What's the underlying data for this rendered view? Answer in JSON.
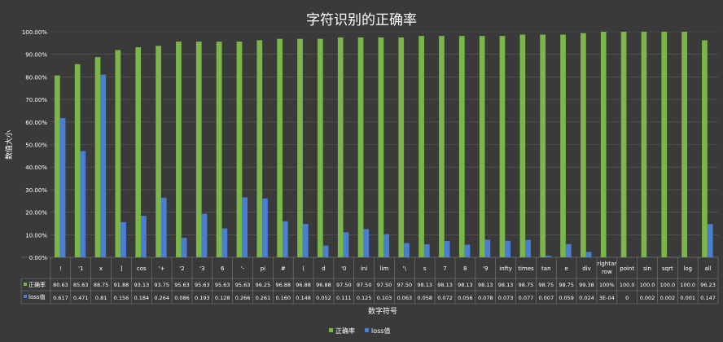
{
  "chart_data": {
    "type": "bar",
    "title": "字符识别的正确率",
    "xlabel": "数字符号",
    "ylabel": "数值大小",
    "ylim": [
      0,
      100
    ],
    "yticks": [
      "0.00%",
      "10.00%",
      "20.00%",
      "30.00%",
      "40.00%",
      "50.00%",
      "60.00%",
      "70.00%",
      "80.00%",
      "90.00%",
      "100.00%"
    ],
    "grid": true,
    "legend_position": "bottom",
    "colors": {
      "accuracy": "#7ab648",
      "loss": "#4a7ed0",
      "background": "#3a3a3a",
      "text": "#ffffff",
      "grid": "#5c5c5c"
    },
    "categories": [
      "!",
      "'1",
      "x",
      "]",
      "cos",
      "'+",
      "'2",
      "'3",
      "6",
      "'-",
      "pi",
      "#",
      "(",
      "d",
      "'0",
      "ini",
      "lim",
      "'\\",
      "s",
      "7",
      "8",
      "'9",
      "infty",
      "times",
      "tan",
      "e",
      "div",
      "rightarrow",
      "point",
      "sin",
      "sqrt",
      "log",
      "all"
    ],
    "category_display": [
      "!",
      "'1",
      "x",
      "]",
      "cos",
      "'+",
      "'2",
      "'3",
      "6",
      "'-",
      "pi",
      "#",
      "(",
      "d",
      "'0",
      "ini",
      "lim",
      "'\\",
      "s",
      "7",
      "8",
      "'9",
      "infty",
      "times",
      "tan",
      "e",
      "div",
      "rightar row",
      "point",
      "sin",
      "sqrt",
      "log",
      "all"
    ],
    "series": [
      {
        "name": "正确率",
        "values": [
          80.63,
          85.63,
          88.75,
          91.88,
          93.13,
          93.75,
          95.63,
          95.63,
          95.63,
          95.63,
          96.25,
          96.88,
          96.88,
          96.88,
          97.5,
          97.5,
          97.5,
          97.5,
          98.13,
          98.13,
          98.13,
          98.13,
          98.13,
          98.75,
          98.75,
          98.75,
          99.38,
          100,
          100,
          100,
          100,
          100,
          96.23
        ],
        "labels": [
          "80.63",
          "85.63",
          "88.75",
          "91.88",
          "93.13",
          "93.75",
          "95.63",
          "95.63",
          "95.63",
          "95.63",
          "96.25",
          "96.88",
          "96.88",
          "96.88",
          "97.50",
          "97.50",
          "97.50",
          "97.50",
          "98.13",
          "98.13",
          "98.13",
          "98.13",
          "98.13",
          "98.75",
          "98.75",
          "98.75",
          "99.38",
          "100%",
          "100.0",
          "100.0",
          "100.0",
          "100.0",
          "96.23"
        ]
      },
      {
        "name": "loss值",
        "values": [
          61.7,
          47.1,
          81,
          15.6,
          18.4,
          26.4,
          8.6,
          19.3,
          12.8,
          26.6,
          26.1,
          16.0,
          14.8,
          5.2,
          11.1,
          12.5,
          10.3,
          6.3,
          5.8,
          7.2,
          5.6,
          7.8,
          7.3,
          7.7,
          0.7,
          5.9,
          2.4,
          0.03,
          0,
          0.2,
          0.2,
          0.1,
          14.7
        ],
        "labels": [
          "0.617",
          "0.471",
          "0.81",
          "0.156",
          "0.184",
          "0.264",
          "0.086",
          "0.193",
          "0.128",
          "0.266",
          "0.261",
          "0.160",
          "0.148",
          "0.052",
          "0.111",
          "0.125",
          "0.103",
          "0.063",
          "0.058",
          "0.072",
          "0.056",
          "0.078",
          "0.073",
          "0.077",
          "0.007",
          "0.059",
          "0.024",
          "3E-04",
          "0",
          "0.002",
          "0.002",
          "0.001",
          "0.147"
        ]
      }
    ]
  }
}
